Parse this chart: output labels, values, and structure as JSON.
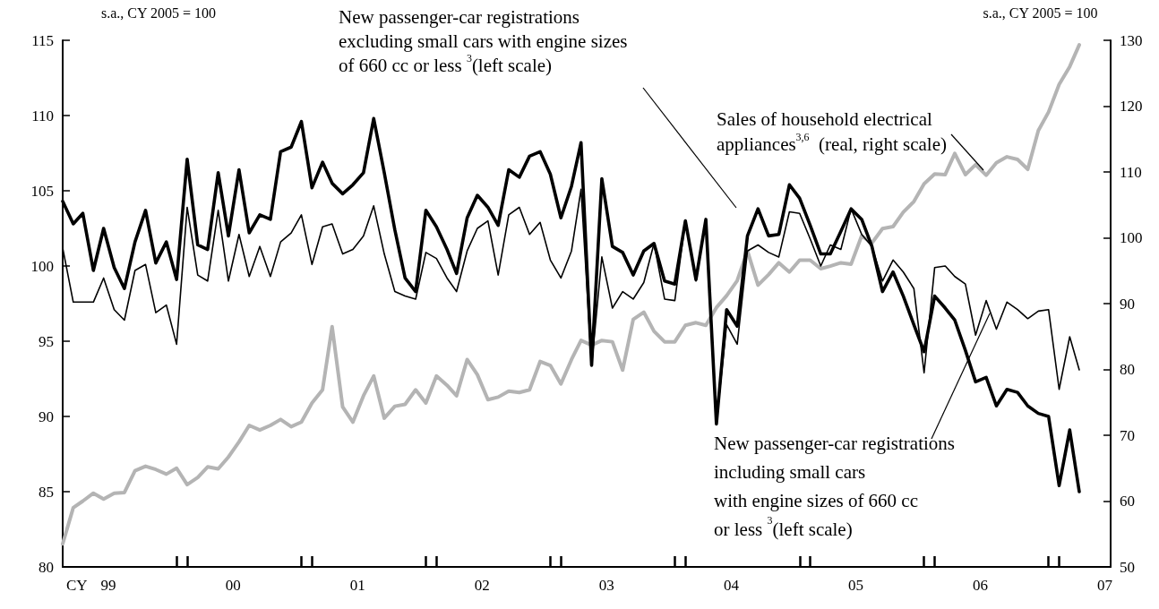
{
  "chart_data": {
    "type": "line",
    "xlabel": "CY",
    "ylabel": "s.a., CY 2005 = 100",
    "y2label": "s.a., CY 2005 = 100",
    "x": [
      "1999-01",
      "1999-02",
      "1999-03",
      "1999-04",
      "1999-05",
      "1999-06",
      "1999-07",
      "1999-08",
      "1999-09",
      "1999-10",
      "1999-11",
      "1999-12",
      "2000-01",
      "2000-02",
      "2000-03",
      "2000-04",
      "2000-05",
      "2000-06",
      "2000-07",
      "2000-08",
      "2000-09",
      "2000-10",
      "2000-11",
      "2000-12",
      "2001-01",
      "2001-02",
      "2001-03",
      "2001-04",
      "2001-05",
      "2001-06",
      "2001-07",
      "2001-08",
      "2001-09",
      "2001-10",
      "2001-11",
      "2001-12",
      "2002-01",
      "2002-02",
      "2002-03",
      "2002-04",
      "2002-05",
      "2002-06",
      "2002-07",
      "2002-08",
      "2002-09",
      "2002-10",
      "2002-11",
      "2002-12",
      "2003-01",
      "2003-02",
      "2003-03",
      "2003-04",
      "2003-05",
      "2003-06",
      "2003-07",
      "2003-08",
      "2003-09",
      "2003-10",
      "2003-11",
      "2003-12",
      "2004-01",
      "2004-02",
      "2004-03",
      "2004-04",
      "2004-05",
      "2004-06",
      "2004-07",
      "2004-08",
      "2004-09",
      "2004-10",
      "2004-11",
      "2004-12",
      "2005-01",
      "2005-02",
      "2005-03",
      "2005-04",
      "2005-05",
      "2005-06",
      "2005-07",
      "2005-08",
      "2005-09",
      "2005-10",
      "2005-11",
      "2005-12",
      "2006-01",
      "2006-02",
      "2006-03",
      "2006-04",
      "2006-05",
      "2006-06",
      "2006-07",
      "2006-08",
      "2006-09",
      "2006-10",
      "2006-11",
      "2006-12",
      "2007-01",
      "2007-02",
      "2007-03"
    ],
    "series": [
      {
        "name": "Sales of household electrical\nappliances$^{3,6}$  (real, right scale)",
        "color": "#b4b4b4",
        "axis": "y2",
        "values": [
          53.5,
          59,
          60,
          61.2,
          60.3,
          61.2,
          61.3,
          64.6,
          65.3,
          64.8,
          64.1,
          65.0,
          62.5,
          63.6,
          65.2,
          64.9,
          66.7,
          69.0,
          71.5,
          70.8,
          71.5,
          72.4,
          71.3,
          72.0,
          74.9,
          76.9,
          86.5,
          74.3,
          72.0,
          76.0,
          79.0,
          72.6,
          74.4,
          74.7,
          76.9,
          74.9,
          79.0,
          77.6,
          76.0,
          81.5,
          79.2,
          75.4,
          75.8,
          76.7,
          76.5,
          76.9,
          81.2,
          80.6,
          77.8,
          81.5,
          84.4,
          83.7,
          84.4,
          84.2,
          79.9,
          87.6,
          88.7,
          85.8,
          84.2,
          84.2,
          86.7,
          87.1,
          86.7,
          89.4,
          91.2,
          93.5,
          98.0,
          92.8,
          94.4,
          96.2,
          94.8,
          96.6,
          96.6,
          95.3,
          95.7,
          96.2,
          96.0,
          100.3,
          99.2,
          101.4,
          101.7,
          103.9,
          105.5,
          108.2,
          109.7,
          109.6,
          112.8,
          109.6,
          111.1,
          109.5,
          111.4,
          112.3,
          111.9,
          110.4,
          116.3,
          119.1,
          123.3,
          126.0,
          129.3
        ]
      },
      {
        "name": "New passenger-car registrations\nincluding small cars\nwith engine sizes of 660 cc\nor less $^{3}$(left scale)",
        "color": "#000000",
        "values": [
          101.2,
          97.6,
          97.6,
          97.6,
          99.2,
          97.1,
          96.4,
          99.7,
          100.1,
          96.9,
          97.4,
          94.8,
          103.9,
          99.4,
          99.0,
          103.7,
          99.0,
          102.1,
          99.3,
          101.3,
          99.3,
          101.6,
          102.2,
          103.4,
          100.1,
          102.6,
          102.8,
          100.8,
          101.1,
          102.0,
          104.0,
          100.8,
          98.3,
          98.0,
          97.8,
          100.9,
          100.5,
          99.2,
          98.3,
          101.0,
          102.5,
          103.0,
          99.4,
          103.4,
          103.9,
          102.1,
          102.9,
          100.4,
          99.2,
          101.0,
          105.1,
          93.4,
          100.6,
          97.2,
          98.3,
          97.8,
          98.9,
          101.5,
          97.8,
          97.7,
          103.0,
          99.0,
          103.1,
          89.6,
          96.1,
          94.8,
          101.0,
          101.4,
          100.9,
          100.6,
          103.6,
          103.5,
          101.8,
          100.0,
          101.4,
          101.1,
          103.8,
          102.1,
          101.3,
          99.0,
          100.4,
          99.6,
          98.5,
          92.9,
          99.9,
          100.0,
          99.3,
          98.8,
          95.4,
          97.7,
          95.8,
          97.6,
          97.1,
          96.5,
          97.0,
          97.1,
          91.8,
          95.3,
          93.1
        ]
      },
      {
        "name": "New passenger-car registrations\nexcluding small cars with engine sizes\nof 660 cc or less $^{3}$(left scale)",
        "color": "#000000",
        "values": [
          104.3,
          102.8,
          103.5,
          99.7,
          102.5,
          99.9,
          98.5,
          101.6,
          103.7,
          100.2,
          101.6,
          99.1,
          107.1,
          101.4,
          101.1,
          106.2,
          102.0,
          106.4,
          102.2,
          103.4,
          103.1,
          107.6,
          107.9,
          109.6,
          105.2,
          106.9,
          105.5,
          104.8,
          105.4,
          106.2,
          109.8,
          106.2,
          102.4,
          99.2,
          98.3,
          103.7,
          102.6,
          101.1,
          99.5,
          103.2,
          104.7,
          103.9,
          102.7,
          106.4,
          105.9,
          107.3,
          107.6,
          106.1,
          103.2,
          105.3,
          108.2,
          93.4,
          105.8,
          101.3,
          100.9,
          99.4,
          101.0,
          101.5,
          99.0,
          98.8,
          103.0,
          99.1,
          103.1,
          89.5,
          97.1,
          96.0,
          102.0,
          103.8,
          102.0,
          102.1,
          105.4,
          104.5,
          102.7,
          100.8,
          100.8,
          102.3,
          103.8,
          103.1,
          101.3,
          98.3,
          99.6,
          98.0,
          96.1,
          94.3,
          98.0,
          97.2,
          96.4,
          94.4,
          92.3,
          92.6,
          90.7,
          91.8,
          91.6,
          90.7,
          90.2,
          90.0,
          85.4,
          89.1,
          85.0
        ]
      }
    ],
    "xlim": [
      "1999-01",
      "2007-06"
    ],
    "xticks": [
      {
        "value": "1999-05-15",
        "label": "99"
      },
      {
        "value": "2000-05-15",
        "label": "00"
      },
      {
        "value": "2001-05-15",
        "label": "01"
      },
      {
        "value": "2002-05-15",
        "label": "02"
      },
      {
        "value": "2003-05-15",
        "label": "03"
      },
      {
        "value": "2004-05-15",
        "label": "04"
      },
      {
        "value": "2005-05-15",
        "label": "05"
      },
      {
        "value": "2006-05-15",
        "label": "06"
      },
      {
        "value": "2007-05-15",
        "label": "07"
      },
      {
        "value": "1999-12",
        "label": null
      },
      {
        "value": "2000-01",
        "label": null
      },
      {
        "value": "2000-12",
        "label": null
      },
      {
        "value": "2001-01",
        "label": null
      },
      {
        "value": "2001-12",
        "label": null
      },
      {
        "value": "2002-01",
        "label": null
      },
      {
        "value": "2002-12",
        "label": null
      },
      {
        "value": "2003-01",
        "label": null
      },
      {
        "value": "2003-12",
        "label": null
      },
      {
        "value": "2004-01",
        "label": null
      },
      {
        "value": "2004-12",
        "label": null
      },
      {
        "value": "2005-01",
        "label": null
      },
      {
        "value": "2005-12",
        "label": null
      },
      {
        "value": "2006-01",
        "label": null
      },
      {
        "value": "2006-12",
        "label": null
      },
      {
        "value": "2007-01",
        "label": null
      }
    ],
    "ylim": [
      80,
      115
    ],
    "yticks": [
      80,
      85,
      90,
      95,
      100,
      105,
      110,
      115
    ],
    "y2lim": [
      50,
      130
    ],
    "y2ticks": [
      50,
      60,
      70,
      80,
      90,
      100,
      110,
      120,
      130
    ],
    "grid": false,
    "legend": false,
    "marker": "none",
    "line_style": "solid"
  }
}
